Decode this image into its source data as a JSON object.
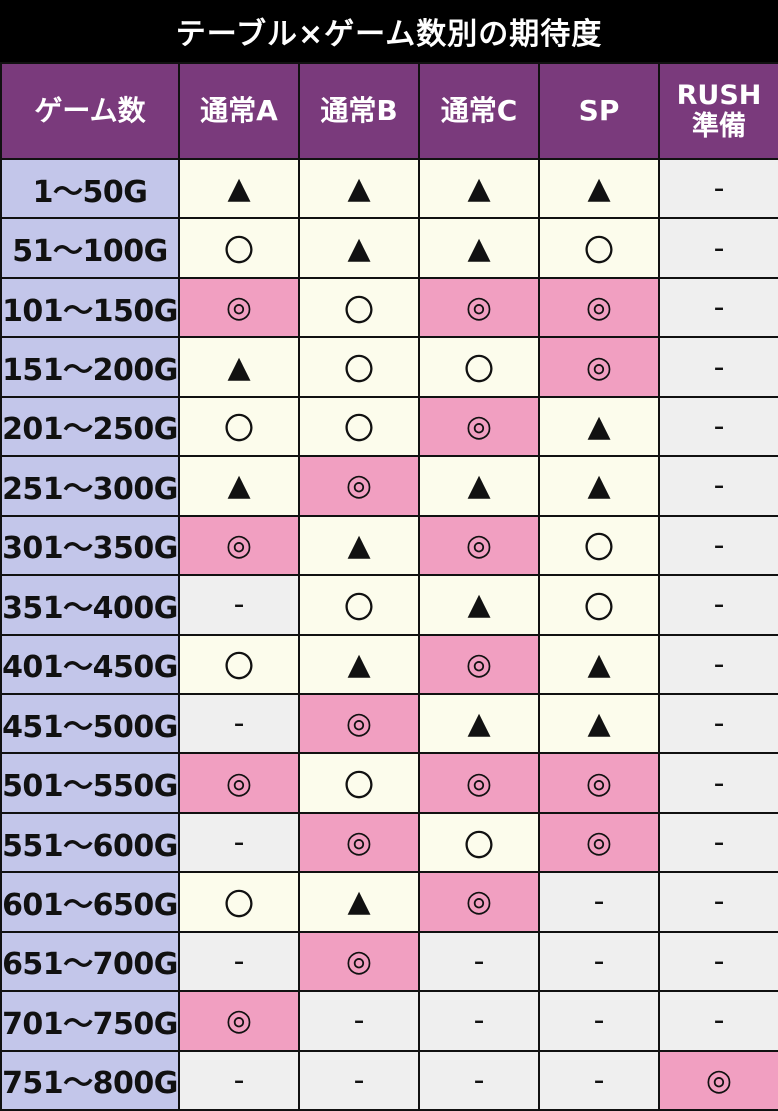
{
  "title": "テーブル×ゲーム数別の期待度",
  "headers": [
    "ゲーム数",
    "通常A",
    "通常B",
    "通常C",
    "SP",
    "RUSH\n準備"
  ],
  "rows": [
    {
      "games": "1～50G",
      "cells": [
        "▲",
        "▲",
        "▲",
        "▲",
        "-"
      ]
    },
    {
      "games": "51～100G",
      "cells": [
        "〇",
        "▲",
        "▲",
        "〇",
        "-"
      ]
    },
    {
      "games": "101～150G",
      "cells": [
        "◎",
        "〇",
        "◎",
        "◎",
        "-"
      ]
    },
    {
      "games": "151～200G",
      "cells": [
        "▲",
        "〇",
        "〇",
        "◎",
        "-"
      ]
    },
    {
      "games": "201～250G",
      "cells": [
        "〇",
        "〇",
        "◎",
        "▲",
        "-"
      ]
    },
    {
      "games": "251～300G",
      "cells": [
        "▲",
        "◎",
        "▲",
        "▲",
        "-"
      ]
    },
    {
      "games": "301～350G",
      "cells": [
        "◎",
        "▲",
        "◎",
        "〇",
        "-"
      ]
    },
    {
      "games": "351～400G",
      "cells": [
        "-",
        "〇",
        "▲",
        "〇",
        "-"
      ]
    },
    {
      "games": "401～450G",
      "cells": [
        "〇",
        "▲",
        "◎",
        "▲",
        "-"
      ]
    },
    {
      "games": "451～500G",
      "cells": [
        "-",
        "◎",
        "▲",
        "▲",
        "-"
      ]
    },
    {
      "games": "501～550G",
      "cells": [
        "◎",
        "〇",
        "◎",
        "◎",
        "-"
      ]
    },
    {
      "games": "551～600G",
      "cells": [
        "-",
        "◎",
        "〇",
        "◎",
        "-"
      ]
    },
    {
      "games": "601～650G",
      "cells": [
        "〇",
        "▲",
        "◎",
        "-",
        "-"
      ]
    },
    {
      "games": "651～700G",
      "cells": [
        "-",
        "◎",
        "-",
        "-",
        "-"
      ]
    },
    {
      "games": "701～750G",
      "cells": [
        "◎",
        "-",
        "-",
        "-",
        "-"
      ]
    },
    {
      "games": "751～800G",
      "cells": [
        "-",
        "-",
        "-",
        "-",
        "◎"
      ]
    }
  ],
  "colors": {
    "header_bg": "#7a3a7c",
    "games_bg": "#c3c6ea",
    "cell_default": "#fcfcec",
    "cell_double_circle": "#f19fc1",
    "cell_dash": "#efefef"
  }
}
